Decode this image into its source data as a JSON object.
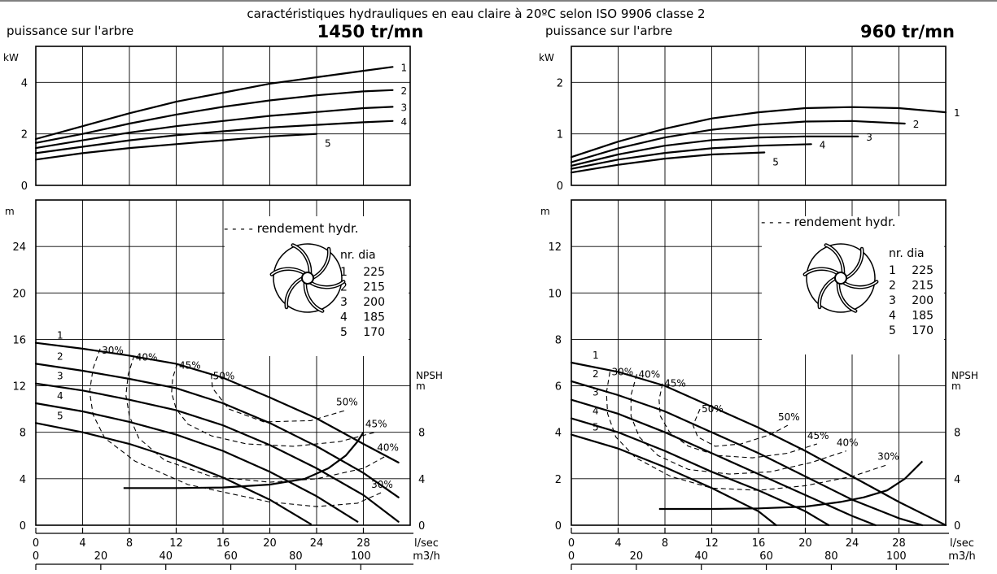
{
  "header": {
    "caption": "caractéristiques hydrauliques en eau claire à 20ºC selon ISO 9906 classe 2"
  },
  "chart_data": [
    {
      "type": "line",
      "speed": "1450 tr/mn",
      "power_title": "puissance sur l'arbre",
      "power_unit": "kW",
      "power_ticks": [
        0,
        2,
        4
      ],
      "power_ylim": [
        0,
        5.4
      ],
      "head_unit": "m",
      "head_ticks": [
        0,
        4,
        8,
        12,
        16,
        20,
        24
      ],
      "head_ylim": [
        0,
        28
      ],
      "npsh_label": "NPSH",
      "npsh_unit": "m",
      "npsh_ticks": [
        0,
        4,
        8
      ],
      "x_ticks": [
        0,
        4,
        8,
        12,
        16,
        20,
        24,
        28
      ],
      "xlim": [
        0,
        32
      ],
      "x_unit": "l/sec",
      "x2_ticks": [
        0,
        20,
        40,
        60,
        80,
        100
      ],
      "x2_unit": "m3/h",
      "efficiency_legend": "- - - - rendement hydr.",
      "impeller_table": {
        "header": "nr. dia",
        "rows": [
          {
            "nr": "1",
            "dia": "225"
          },
          {
            "nr": "2",
            "dia": "215"
          },
          {
            "nr": "3",
            "dia": "200"
          },
          {
            "nr": "4",
            "dia": "185"
          },
          {
            "nr": "5",
            "dia": "170"
          }
        ]
      },
      "power_series": [
        {
          "name": "1",
          "x": [
            0,
            4,
            8,
            12,
            16,
            20,
            24,
            28,
            30.5
          ],
          "y": [
            1.8,
            2.3,
            2.8,
            3.25,
            3.6,
            3.95,
            4.2,
            4.45,
            4.6
          ]
        },
        {
          "name": "2",
          "x": [
            0,
            4,
            8,
            12,
            16,
            20,
            24,
            28,
            30.5
          ],
          "y": [
            1.65,
            2.0,
            2.4,
            2.75,
            3.05,
            3.3,
            3.5,
            3.65,
            3.7
          ]
        },
        {
          "name": "3",
          "x": [
            0,
            4,
            8,
            12,
            16,
            20,
            24,
            28,
            30.5
          ],
          "y": [
            1.45,
            1.75,
            2.05,
            2.3,
            2.5,
            2.7,
            2.85,
            3.0,
            3.05
          ]
        },
        {
          "name": "4",
          "x": [
            0,
            4,
            8,
            12,
            16,
            20,
            24,
            28,
            30.5
          ],
          "y": [
            1.25,
            1.5,
            1.75,
            1.95,
            2.1,
            2.25,
            2.35,
            2.45,
            2.5
          ]
        },
        {
          "name": "5",
          "x": [
            0,
            4,
            8,
            12,
            16,
            20,
            24
          ],
          "y": [
            1.0,
            1.25,
            1.45,
            1.6,
            1.75,
            1.9,
            2.0
          ]
        }
      ],
      "head_series": [
        {
          "name": "1",
          "x": [
            0,
            4,
            8,
            12,
            16,
            20,
            24,
            28,
            31
          ],
          "y": [
            15.7,
            15.2,
            14.6,
            13.9,
            12.7,
            11.0,
            9.2,
            7.0,
            5.4
          ]
        },
        {
          "name": "2",
          "x": [
            0,
            4,
            8,
            12,
            16,
            20,
            24,
            28,
            31
          ],
          "y": [
            13.9,
            13.3,
            12.6,
            11.8,
            10.5,
            8.8,
            6.8,
            4.5,
            2.4
          ]
        },
        {
          "name": "3",
          "x": [
            0,
            4,
            8,
            12,
            16,
            20,
            24,
            28,
            31
          ],
          "y": [
            12.2,
            11.6,
            10.8,
            9.9,
            8.6,
            6.9,
            4.9,
            2.6,
            0.3
          ]
        },
        {
          "name": "4",
          "x": [
            0,
            4,
            8,
            12,
            16,
            20,
            24,
            27.5
          ],
          "y": [
            10.5,
            9.8,
            8.9,
            7.8,
            6.4,
            4.6,
            2.5,
            0.3
          ]
        },
        {
          "name": "5",
          "x": [
            0,
            4,
            8,
            12,
            16,
            20,
            23.5
          ],
          "y": [
            8.8,
            8.0,
            7.0,
            5.7,
            4.1,
            2.2,
            0.1
          ]
        }
      ],
      "efficiency_curves": [
        {
          "label": "30%",
          "x": [
            5.5,
            4.9,
            4.6,
            4.9,
            5.9,
            8.5,
            13,
            20,
            24,
            27.5,
            29.5
          ],
          "y": [
            15.2,
            13.5,
            11.5,
            9.5,
            7.5,
            5.5,
            3.5,
            2.0,
            1.6,
            1.9,
            2.8
          ]
        },
        {
          "label": "40%",
          "x": [
            8.4,
            7.9,
            7.7,
            8.0,
            8.8,
            11,
            15,
            20,
            24,
            28,
            30
          ],
          "y": [
            14.6,
            13.0,
            11.2,
            9.4,
            7.5,
            5.6,
            4.2,
            3.7,
            4.0,
            4.9,
            6.0
          ]
        },
        {
          "label": "45%",
          "x": [
            12.1,
            11.7,
            11.6,
            12.0,
            13.0,
            15.0,
            18.0,
            22.0,
            26.0,
            29.0
          ],
          "y": [
            13.9,
            12.7,
            11.4,
            10.0,
            8.7,
            7.7,
            7.0,
            6.8,
            7.2,
            8.0
          ]
        },
        {
          "label": "50%",
          "x": [
            15.0,
            15.1,
            16.5,
            19.5,
            23.5,
            26.5
          ],
          "y": [
            13.0,
            11.8,
            10.0,
            8.9,
            9.0,
            9.9
          ]
        }
      ],
      "npsh_curve": {
        "x": [
          7.5,
          12,
          16,
          20,
          23,
          25,
          26.5,
          27.5,
          28
        ],
        "y": [
          3.2,
          3.2,
          3.25,
          3.5,
          4.0,
          4.9,
          6.0,
          7.2,
          8.0
        ]
      }
    },
    {
      "type": "line",
      "speed": "960 tr/mn",
      "power_title": "puissance sur l'arbre",
      "power_unit": "kW",
      "power_ticks": [
        0,
        1,
        2
      ],
      "power_ylim": [
        0,
        2.7
      ],
      "head_unit": "m",
      "head_ticks": [
        0,
        2,
        4,
        6,
        8,
        10,
        12
      ],
      "head_ylim": [
        0,
        14
      ],
      "npsh_label": "NPSH",
      "npsh_unit": "m",
      "npsh_ticks": [
        0,
        4,
        8
      ],
      "x_ticks": [
        0,
        4,
        8,
        12,
        16,
        20,
        24,
        28
      ],
      "xlim": [
        0,
        32
      ],
      "x_unit": "l/sec",
      "x2_ticks": [
        0,
        20,
        40,
        60,
        80,
        100
      ],
      "x2_unit": "m3/h",
      "efficiency_legend": "- - - - rendement hydr.",
      "impeller_table": {
        "header": "nr. dia",
        "rows": [
          {
            "nr": "1",
            "dia": "225"
          },
          {
            "nr": "2",
            "dia": "215"
          },
          {
            "nr": "3",
            "dia": "200"
          },
          {
            "nr": "4",
            "dia": "185"
          },
          {
            "nr": "5",
            "dia": "170"
          }
        ]
      },
      "power_series": [
        {
          "name": "1",
          "x": [
            0,
            4,
            8,
            12,
            16,
            20,
            24,
            28,
            32
          ],
          "y": [
            0.55,
            0.85,
            1.1,
            1.3,
            1.42,
            1.5,
            1.52,
            1.5,
            1.42
          ]
        },
        {
          "name": "2",
          "x": [
            0,
            4,
            8,
            12,
            16,
            20,
            24,
            28.5
          ],
          "y": [
            0.45,
            0.72,
            0.93,
            1.08,
            1.18,
            1.24,
            1.25,
            1.2
          ]
        },
        {
          "name": "3",
          "x": [
            0,
            4,
            8,
            12,
            16,
            20,
            24.5
          ],
          "y": [
            0.38,
            0.6,
            0.77,
            0.88,
            0.93,
            0.95,
            0.95
          ]
        },
        {
          "name": "4",
          "x": [
            0,
            4,
            8,
            12,
            16,
            20.5
          ],
          "y": [
            0.32,
            0.5,
            0.63,
            0.72,
            0.77,
            0.8
          ]
        },
        {
          "name": "5",
          "x": [
            0,
            4,
            8,
            12,
            16.5
          ],
          "y": [
            0.25,
            0.4,
            0.52,
            0.6,
            0.64
          ]
        }
      ],
      "head_series": [
        {
          "name": "1",
          "x": [
            0,
            4,
            8,
            12,
            16,
            20,
            24,
            28,
            32
          ],
          "y": [
            7.0,
            6.6,
            6.0,
            5.1,
            4.2,
            3.2,
            2.1,
            1.0,
            0.0
          ]
        },
        {
          "name": "2",
          "x": [
            0,
            4,
            8,
            12,
            16,
            20,
            24,
            28,
            30
          ],
          "y": [
            6.2,
            5.6,
            4.9,
            4.0,
            3.1,
            2.1,
            1.1,
            0.3,
            0.0
          ]
        },
        {
          "name": "3",
          "x": [
            0,
            4,
            8,
            12,
            16,
            20,
            24,
            26
          ],
          "y": [
            5.4,
            4.8,
            4.0,
            3.1,
            2.2,
            1.3,
            0.4,
            0.0
          ]
        },
        {
          "name": "4",
          "x": [
            0,
            4,
            8,
            12,
            16,
            20,
            22
          ],
          "y": [
            4.6,
            4.0,
            3.2,
            2.3,
            1.5,
            0.6,
            0.0
          ]
        },
        {
          "name": "5",
          "x": [
            0,
            4,
            8,
            12,
            16,
            17.5
          ],
          "y": [
            3.9,
            3.3,
            2.5,
            1.6,
            0.6,
            0.0
          ]
        }
      ],
      "efficiency_curves": [
        {
          "label": "30%",
          "x": [
            3.3,
            3.0,
            3.1,
            3.8,
            5.5,
            8.5,
            12,
            16,
            20,
            24,
            27
          ],
          "y": [
            6.6,
            5.7,
            4.8,
            3.8,
            2.9,
            2.1,
            1.6,
            1.5,
            1.7,
            2.1,
            2.6
          ]
        },
        {
          "label": "40%",
          "x": [
            5.6,
            5.1,
            5.1,
            5.8,
            7.4,
            10,
            13.5,
            17,
            20.5,
            23.5
          ],
          "y": [
            6.5,
            5.6,
            4.7,
            3.8,
            3.0,
            2.4,
            2.2,
            2.3,
            2.7,
            3.2
          ]
        },
        {
          "label": "45%",
          "x": [
            7.8,
            7.5,
            7.6,
            8.4,
            10.0,
            12.5,
            15.5,
            18.5,
            21
          ],
          "y": [
            6.1,
            5.4,
            4.7,
            4.0,
            3.4,
            3.0,
            2.9,
            3.1,
            3.5
          ]
        },
        {
          "label": "50%",
          "x": [
            11.0,
            10.4,
            10.8,
            12.3,
            14.5,
            17.0,
            18.5
          ],
          "y": [
            5.0,
            4.3,
            3.8,
            3.4,
            3.5,
            3.9,
            4.3
          ]
        }
      ],
      "npsh_curve": {
        "x": [
          7.5,
          12,
          16,
          20,
          23,
          25,
          27,
          28.5,
          30
        ],
        "y": [
          1.4,
          1.4,
          1.45,
          1.6,
          2.0,
          2.4,
          3.0,
          4.0,
          5.5
        ]
      }
    }
  ]
}
